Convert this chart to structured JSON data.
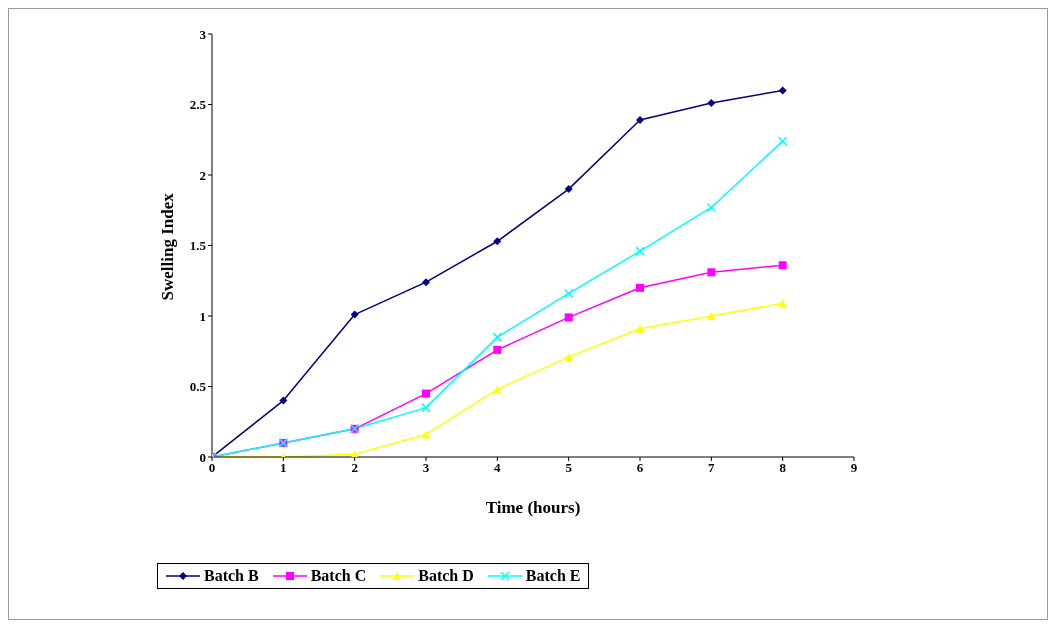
{
  "chart_data": {
    "type": "line",
    "xlabel": "Time (hours)",
    "ylabel": "Swelling Index",
    "x": [
      0,
      1,
      2,
      3,
      4,
      5,
      6,
      7,
      8
    ],
    "xlim": [
      0,
      9
    ],
    "xticks": [
      0,
      1,
      2,
      3,
      4,
      5,
      6,
      7,
      8,
      9
    ],
    "ylim": [
      0,
      3
    ],
    "yticks": [
      0,
      0.5,
      1,
      1.5,
      2,
      2.5,
      3
    ],
    "grid": false,
    "legend": "bottom",
    "series": [
      {
        "name": "Batch B",
        "color": "#000080",
        "marker": "diamond",
        "values": [
          0,
          0.4,
          1.01,
          1.24,
          1.53,
          1.9,
          2.39,
          2.51,
          2.6
        ]
      },
      {
        "name": "Batch C",
        "color": "#ff00ff",
        "marker": "square",
        "values": [
          0,
          0.1,
          0.2,
          0.45,
          0.76,
          0.99,
          1.2,
          1.31,
          1.36
        ]
      },
      {
        "name": "Batch D",
        "color": "#ffff00",
        "marker": "triangle",
        "values": [
          0,
          0,
          0.02,
          0.16,
          0.48,
          0.71,
          0.91,
          1.0,
          1.09
        ]
      },
      {
        "name": "Batch E",
        "color": "#00ffff",
        "marker": "cross",
        "values": [
          0,
          0.1,
          0.2,
          0.35,
          0.85,
          1.16,
          1.46,
          1.77,
          2.24
        ]
      }
    ]
  }
}
